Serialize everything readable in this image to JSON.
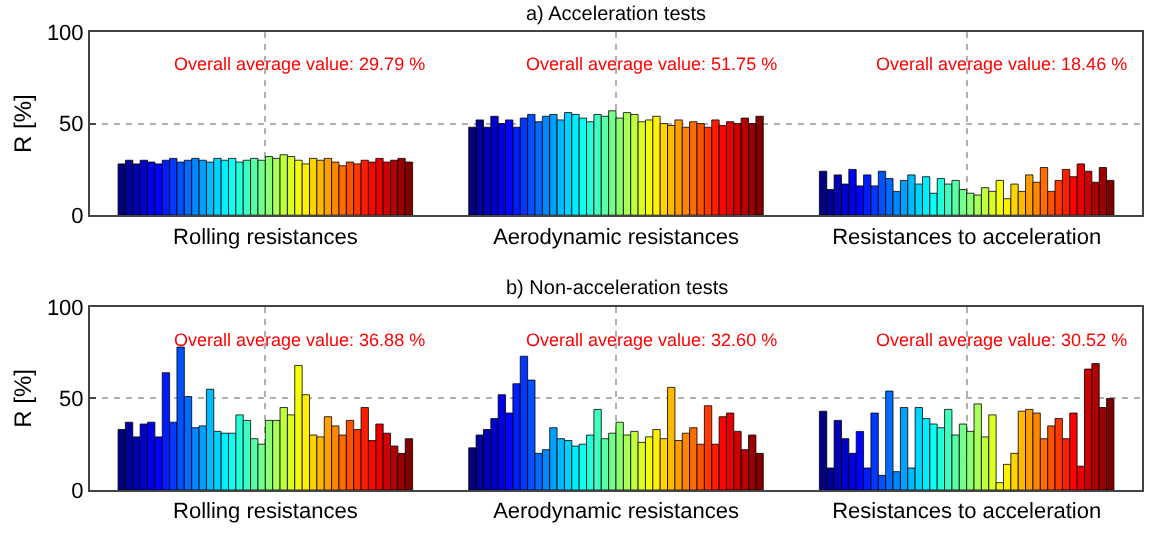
{
  "chart_data": [
    {
      "type": "bar",
      "title": "a) Acceleration tests",
      "ylabel": "R [%]",
      "categories": [
        "Rolling resistances",
        "Aerodynamic resistances",
        "Resistances to acceleration"
      ],
      "ylim": [
        0,
        100
      ],
      "yticks": [
        0,
        50,
        100
      ],
      "grid": true,
      "annotations": [
        "Overall average value: 29.79 %",
        "Overall average value: 51.75 %",
        "Overall average value: 18.46 %"
      ],
      "series": [
        {
          "color": "#000080",
          "values": [
            28,
            48,
            24
          ]
        },
        {
          "color": "#00009a",
          "values": [
            30,
            52,
            14
          ]
        },
        {
          "color": "#0000b4",
          "values": [
            28,
            48,
            22
          ]
        },
        {
          "color": "#0000ce",
          "values": [
            30,
            54,
            17
          ]
        },
        {
          "color": "#0000e8",
          "values": [
            29,
            50,
            25
          ]
        },
        {
          "color": "#0003ff",
          "values": [
            28,
            52,
            16
          ]
        },
        {
          "color": "#001dff",
          "values": [
            30,
            48,
            22
          ]
        },
        {
          "color": "#0038ff",
          "values": [
            31,
            53,
            16
          ]
        },
        {
          "color": "#0052ff",
          "values": [
            29,
            55,
            24
          ]
        },
        {
          "color": "#006cff",
          "values": [
            30,
            51,
            20
          ]
        },
        {
          "color": "#0086ff",
          "values": [
            31,
            54,
            13
          ]
        },
        {
          "color": "#00a0ff",
          "values": [
            30,
            55,
            19
          ]
        },
        {
          "color": "#00baff",
          "values": [
            29,
            52,
            22
          ]
        },
        {
          "color": "#00d4ff",
          "values": [
            31,
            56,
            17
          ]
        },
        {
          "color": "#00efff",
          "values": [
            30,
            55,
            21
          ]
        },
        {
          "color": "#0afff5",
          "values": [
            31,
            53,
            12
          ]
        },
        {
          "color": "#24ffdb",
          "values": [
            29,
            51,
            20
          ]
        },
        {
          "color": "#3effc1",
          "values": [
            30,
            55,
            17
          ]
        },
        {
          "color": "#58ffa7",
          "values": [
            31,
            54,
            19
          ]
        },
        {
          "color": "#72ff8d",
          "values": [
            30,
            57,
            14
          ]
        },
        {
          "color": "#8dff72",
          "values": [
            32,
            53,
            12
          ]
        },
        {
          "color": "#a7ff58",
          "values": [
            31,
            56,
            11
          ]
        },
        {
          "color": "#c1ff3e",
          "values": [
            33,
            55,
            15
          ]
        },
        {
          "color": "#dbff24",
          "values": [
            32,
            51,
            13
          ]
        },
        {
          "color": "#f5ff0a",
          "values": [
            30,
            52,
            19
          ]
        },
        {
          "color": "#ffef00",
          "values": [
            28,
            54,
            9
          ]
        },
        {
          "color": "#ffd400",
          "values": [
            31,
            50,
            17
          ]
        },
        {
          "color": "#ffba00",
          "values": [
            30,
            49,
            13
          ]
        },
        {
          "color": "#ffa000",
          "values": [
            31,
            52,
            22
          ]
        },
        {
          "color": "#ff8600",
          "values": [
            29,
            48,
            18
          ]
        },
        {
          "color": "#ff6c00",
          "values": [
            27,
            51,
            26
          ]
        },
        {
          "color": "#ff5200",
          "values": [
            29,
            50,
            13
          ]
        },
        {
          "color": "#ff3800",
          "values": [
            28,
            48,
            19
          ]
        },
        {
          "color": "#ff1d00",
          "values": [
            30,
            52,
            25
          ]
        },
        {
          "color": "#ff0300",
          "values": [
            29,
            49,
            21
          ]
        },
        {
          "color": "#e80000",
          "values": [
            31,
            51,
            28
          ]
        },
        {
          "color": "#ce0000",
          "values": [
            29,
            50,
            24
          ]
        },
        {
          "color": "#b40000",
          "values": [
            30,
            53,
            18
          ]
        },
        {
          "color": "#9a0000",
          "values": [
            31,
            50,
            26
          ]
        },
        {
          "color": "#800000",
          "values": [
            29,
            54,
            19
          ]
        }
      ]
    },
    {
      "type": "bar",
      "title": "b) Non-acceleration tests",
      "ylabel": "R [%]",
      "categories": [
        "Rolling resistances",
        "Aerodynamic resistances",
        "Resistances to acceleration"
      ],
      "ylim": [
        0,
        100
      ],
      "yticks": [
        0,
        50,
        100
      ],
      "grid": true,
      "annotations": [
        "Overall average value: 36.88 %",
        "Overall average value: 32.60 %",
        "Overall average value: 30.52 %"
      ],
      "series": [
        {
          "color": "#000080",
          "values": [
            33,
            23,
            43
          ]
        },
        {
          "color": "#00009a",
          "values": [
            37,
            30,
            12
          ]
        },
        {
          "color": "#0000b4",
          "values": [
            29,
            33,
            38
          ]
        },
        {
          "color": "#0000ce",
          "values": [
            36,
            39,
            28
          ]
        },
        {
          "color": "#0000e8",
          "values": [
            37,
            52,
            20
          ]
        },
        {
          "color": "#0003ff",
          "values": [
            29,
            42,
            32
          ]
        },
        {
          "color": "#001dff",
          "values": [
            64,
            58,
            12
          ]
        },
        {
          "color": "#0038ff",
          "values": [
            37,
            73,
            42
          ]
        },
        {
          "color": "#0052ff",
          "values": [
            78,
            60,
            8
          ]
        },
        {
          "color": "#006cff",
          "values": [
            51,
            20,
            54
          ]
        },
        {
          "color": "#0086ff",
          "values": [
            34,
            22,
            10
          ]
        },
        {
          "color": "#00a0ff",
          "values": [
            35,
            34,
            45
          ]
        },
        {
          "color": "#00baff",
          "values": [
            55,
            28,
            12
          ]
        },
        {
          "color": "#00d4ff",
          "values": [
            32,
            27,
            45
          ]
        },
        {
          "color": "#00efff",
          "values": [
            31,
            24,
            39
          ]
        },
        {
          "color": "#0afff5",
          "values": [
            31,
            25,
            36
          ]
        },
        {
          "color": "#24ffdb",
          "values": [
            41,
            30,
            34
          ]
        },
        {
          "color": "#3effc1",
          "values": [
            38,
            44,
            44
          ]
        },
        {
          "color": "#58ffa7",
          "values": [
            28,
            28,
            30
          ]
        },
        {
          "color": "#72ff8d",
          "values": [
            25,
            31,
            36
          ]
        },
        {
          "color": "#8dff72",
          "values": [
            38,
            37,
            32
          ]
        },
        {
          "color": "#a7ff58",
          "values": [
            38,
            30,
            47
          ]
        },
        {
          "color": "#c1ff3e",
          "values": [
            45,
            32,
            29
          ]
        },
        {
          "color": "#dbff24",
          "values": [
            41,
            26,
            41
          ]
        },
        {
          "color": "#f5ff0a",
          "values": [
            68,
            29,
            4
          ]
        },
        {
          "color": "#ffef00",
          "values": [
            52,
            33,
            14
          ]
        },
        {
          "color": "#ffd400",
          "values": [
            30,
            28,
            20
          ]
        },
        {
          "color": "#ffba00",
          "values": [
            29,
            56,
            43
          ]
        },
        {
          "color": "#ffa000",
          "values": [
            40,
            27,
            44
          ]
        },
        {
          "color": "#ff8600",
          "values": [
            35,
            31,
            42
          ]
        },
        {
          "color": "#ff6c00",
          "values": [
            30,
            34,
            28
          ]
        },
        {
          "color": "#ff5200",
          "values": [
            38,
            25,
            35
          ]
        },
        {
          "color": "#ff3800",
          "values": [
            33,
            46,
            39
          ]
        },
        {
          "color": "#ff1d00",
          "values": [
            45,
            25,
            28
          ]
        },
        {
          "color": "#ff0300",
          "values": [
            27,
            40,
            42
          ]
        },
        {
          "color": "#e80000",
          "values": [
            36,
            42,
            13
          ]
        },
        {
          "color": "#ce0000",
          "values": [
            31,
            32,
            66
          ]
        },
        {
          "color": "#b40000",
          "values": [
            24,
            22,
            69
          ]
        },
        {
          "color": "#9a0000",
          "values": [
            20,
            30,
            45
          ]
        },
        {
          "color": "#800000",
          "values": [
            28,
            20,
            50
          ]
        }
      ]
    }
  ]
}
